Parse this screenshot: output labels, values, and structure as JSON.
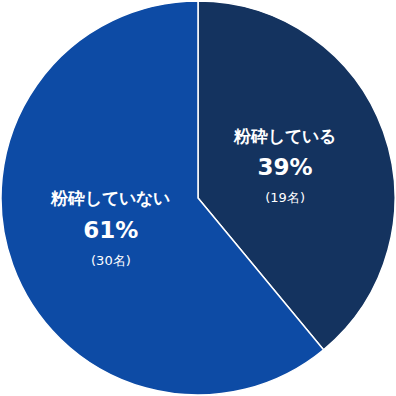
{
  "chart_data": {
    "type": "pie",
    "categories": [
      "粉砕している",
      "粉砕していない"
    ],
    "values": [
      39,
      61
    ],
    "value_labels": [
      "39%",
      "61%"
    ],
    "counts": [
      19,
      30
    ],
    "count_labels": [
      "(19名)",
      "(30名)"
    ],
    "colors": [
      "#14335f",
      "#0d4ba5"
    ],
    "data_labels": true
  }
}
